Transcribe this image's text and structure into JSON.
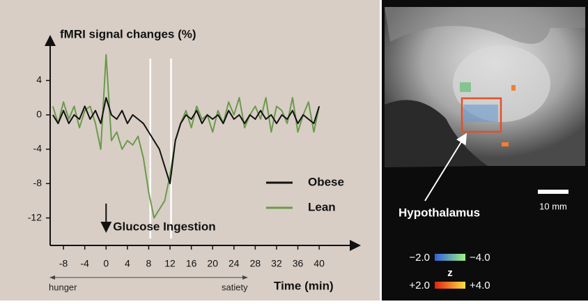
{
  "chart_data": {
    "type": "line",
    "title": "fMRI signal changes (%)",
    "x_label": "Time (min)",
    "x": [
      -10,
      -9,
      -8,
      -7,
      -6,
      -5,
      -4,
      -3,
      -2,
      -1,
      0,
      1,
      2,
      3,
      4,
      5,
      6,
      7,
      8,
      9,
      10,
      11,
      12,
      13,
      14,
      15,
      16,
      17,
      18,
      19,
      20,
      21,
      22,
      23,
      24,
      25,
      26,
      27,
      28,
      29,
      30,
      31,
      32,
      33,
      34,
      35,
      36,
      37,
      38,
      39,
      40
    ],
    "series": [
      {
        "name": "Obese",
        "color": "#111111",
        "values": [
          0,
          -1,
          0.5,
          -1,
          0,
          -0.5,
          1,
          -0.5,
          0.5,
          -1,
          2,
          0,
          -0.5,
          0.5,
          -1,
          0,
          -0.5,
          -1,
          -2,
          -3,
          -4,
          -6,
          -8,
          -3,
          -1,
          0,
          -0.5,
          0.5,
          -1,
          0,
          -0.5,
          0,
          -1,
          0.5,
          -0.5,
          0,
          -1,
          0,
          -0.5,
          0.5,
          -0.5,
          0,
          -1,
          0,
          -0.5,
          0.5,
          -1,
          0,
          -0.5,
          -1,
          1
        ]
      },
      {
        "name": "Lean",
        "color": "#6a9a4a",
        "values": [
          1,
          -1,
          1.5,
          -0.5,
          1,
          -1.5,
          0.5,
          1,
          -1,
          -4,
          7,
          -3,
          -2,
          -4,
          -3,
          -3.5,
          -2.5,
          -5,
          -9,
          -12,
          -11,
          -10,
          -7,
          -3,
          -1,
          0.5,
          -1.5,
          1,
          -0.5,
          0,
          -2,
          0.5,
          -1,
          1.5,
          0,
          2,
          -1.5,
          0,
          1,
          -0.5,
          2,
          -2,
          1,
          0.5,
          -1,
          2,
          -2,
          0,
          1.5,
          -2,
          1
        ]
      }
    ],
    "xlim": [
      -10.5,
      46
    ],
    "ylim": [
      -15.2,
      8.5
    ],
    "xticks": [
      -8,
      -4,
      0,
      4,
      8,
      12,
      16,
      20,
      24,
      28,
      32,
      36,
      40
    ],
    "yticks": [
      4,
      0,
      -4,
      -8,
      -12
    ],
    "vlines": [
      8.3,
      12.2
    ],
    "annotation": {
      "text": "Glucose Ingestion",
      "x": 0
    },
    "range_labels": [
      "hunger",
      "satiety"
    ]
  },
  "image": {
    "label": "Hypothalamus",
    "scale": "10 mm",
    "colorbar_neg": [
      "−2.0",
      "−4.0"
    ],
    "colorbar_title": "z",
    "colorbar_pos": [
      "+2.0",
      "+4.0"
    ]
  }
}
